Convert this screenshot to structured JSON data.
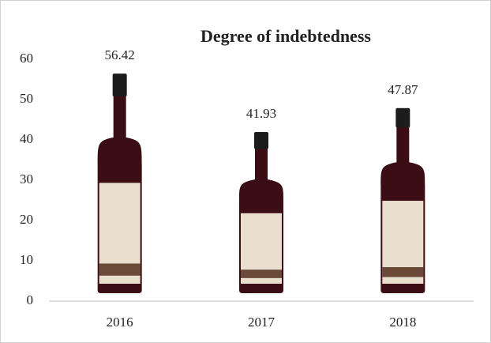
{
  "chart_data": {
    "type": "pictograph",
    "title": "Degree of indebtedness",
    "categories": [
      "2016",
      "2017",
      "2018"
    ],
    "values": [
      56.42,
      41.93,
      47.87
    ],
    "color": "#3b0d14",
    "ylim": [
      0,
      60
    ],
    "yticks": [
      0,
      10,
      20,
      30,
      40,
      50,
      60
    ],
    "grid": false
  }
}
